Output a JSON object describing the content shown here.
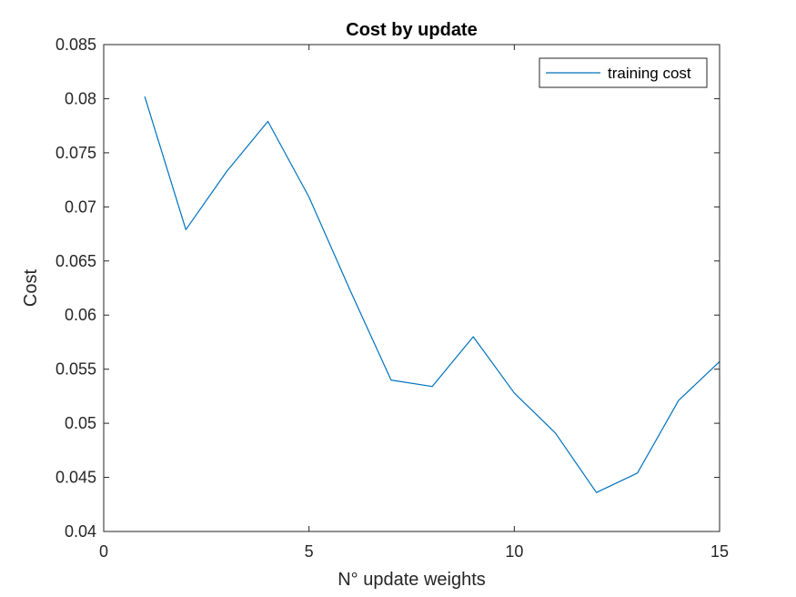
{
  "chart_data": {
    "type": "line",
    "title": "Cost by update",
    "xlabel": "N° update weights",
    "ylabel": "Cost",
    "xlim": [
      0,
      15
    ],
    "ylim": [
      0.04,
      0.085
    ],
    "xticks": [
      0,
      5,
      10,
      15
    ],
    "xtick_labels": [
      "0",
      "5",
      "10",
      "15"
    ],
    "yticks": [
      0.04,
      0.045,
      0.05,
      0.055,
      0.06,
      0.065,
      0.07,
      0.075,
      0.08,
      0.085
    ],
    "ytick_labels": [
      "0.04",
      "0.045",
      "0.05",
      "0.055",
      "0.06",
      "0.065",
      "0.07",
      "0.075",
      "0.08",
      "0.085"
    ],
    "grid": false,
    "legend_position": "top-right",
    "series": [
      {
        "name": "training cost",
        "color": "#0072BD",
        "x": [
          1,
          2,
          3,
          4,
          5,
          6,
          7,
          8,
          9,
          10,
          11,
          12,
          13,
          14,
          15
        ],
        "y": [
          0.0802,
          0.0679,
          0.0733,
          0.0779,
          0.0709,
          0.0623,
          0.054,
          0.0534,
          0.058,
          0.0528,
          0.0491,
          0.0436,
          0.0454,
          0.0521,
          0.0557
        ]
      }
    ]
  }
}
